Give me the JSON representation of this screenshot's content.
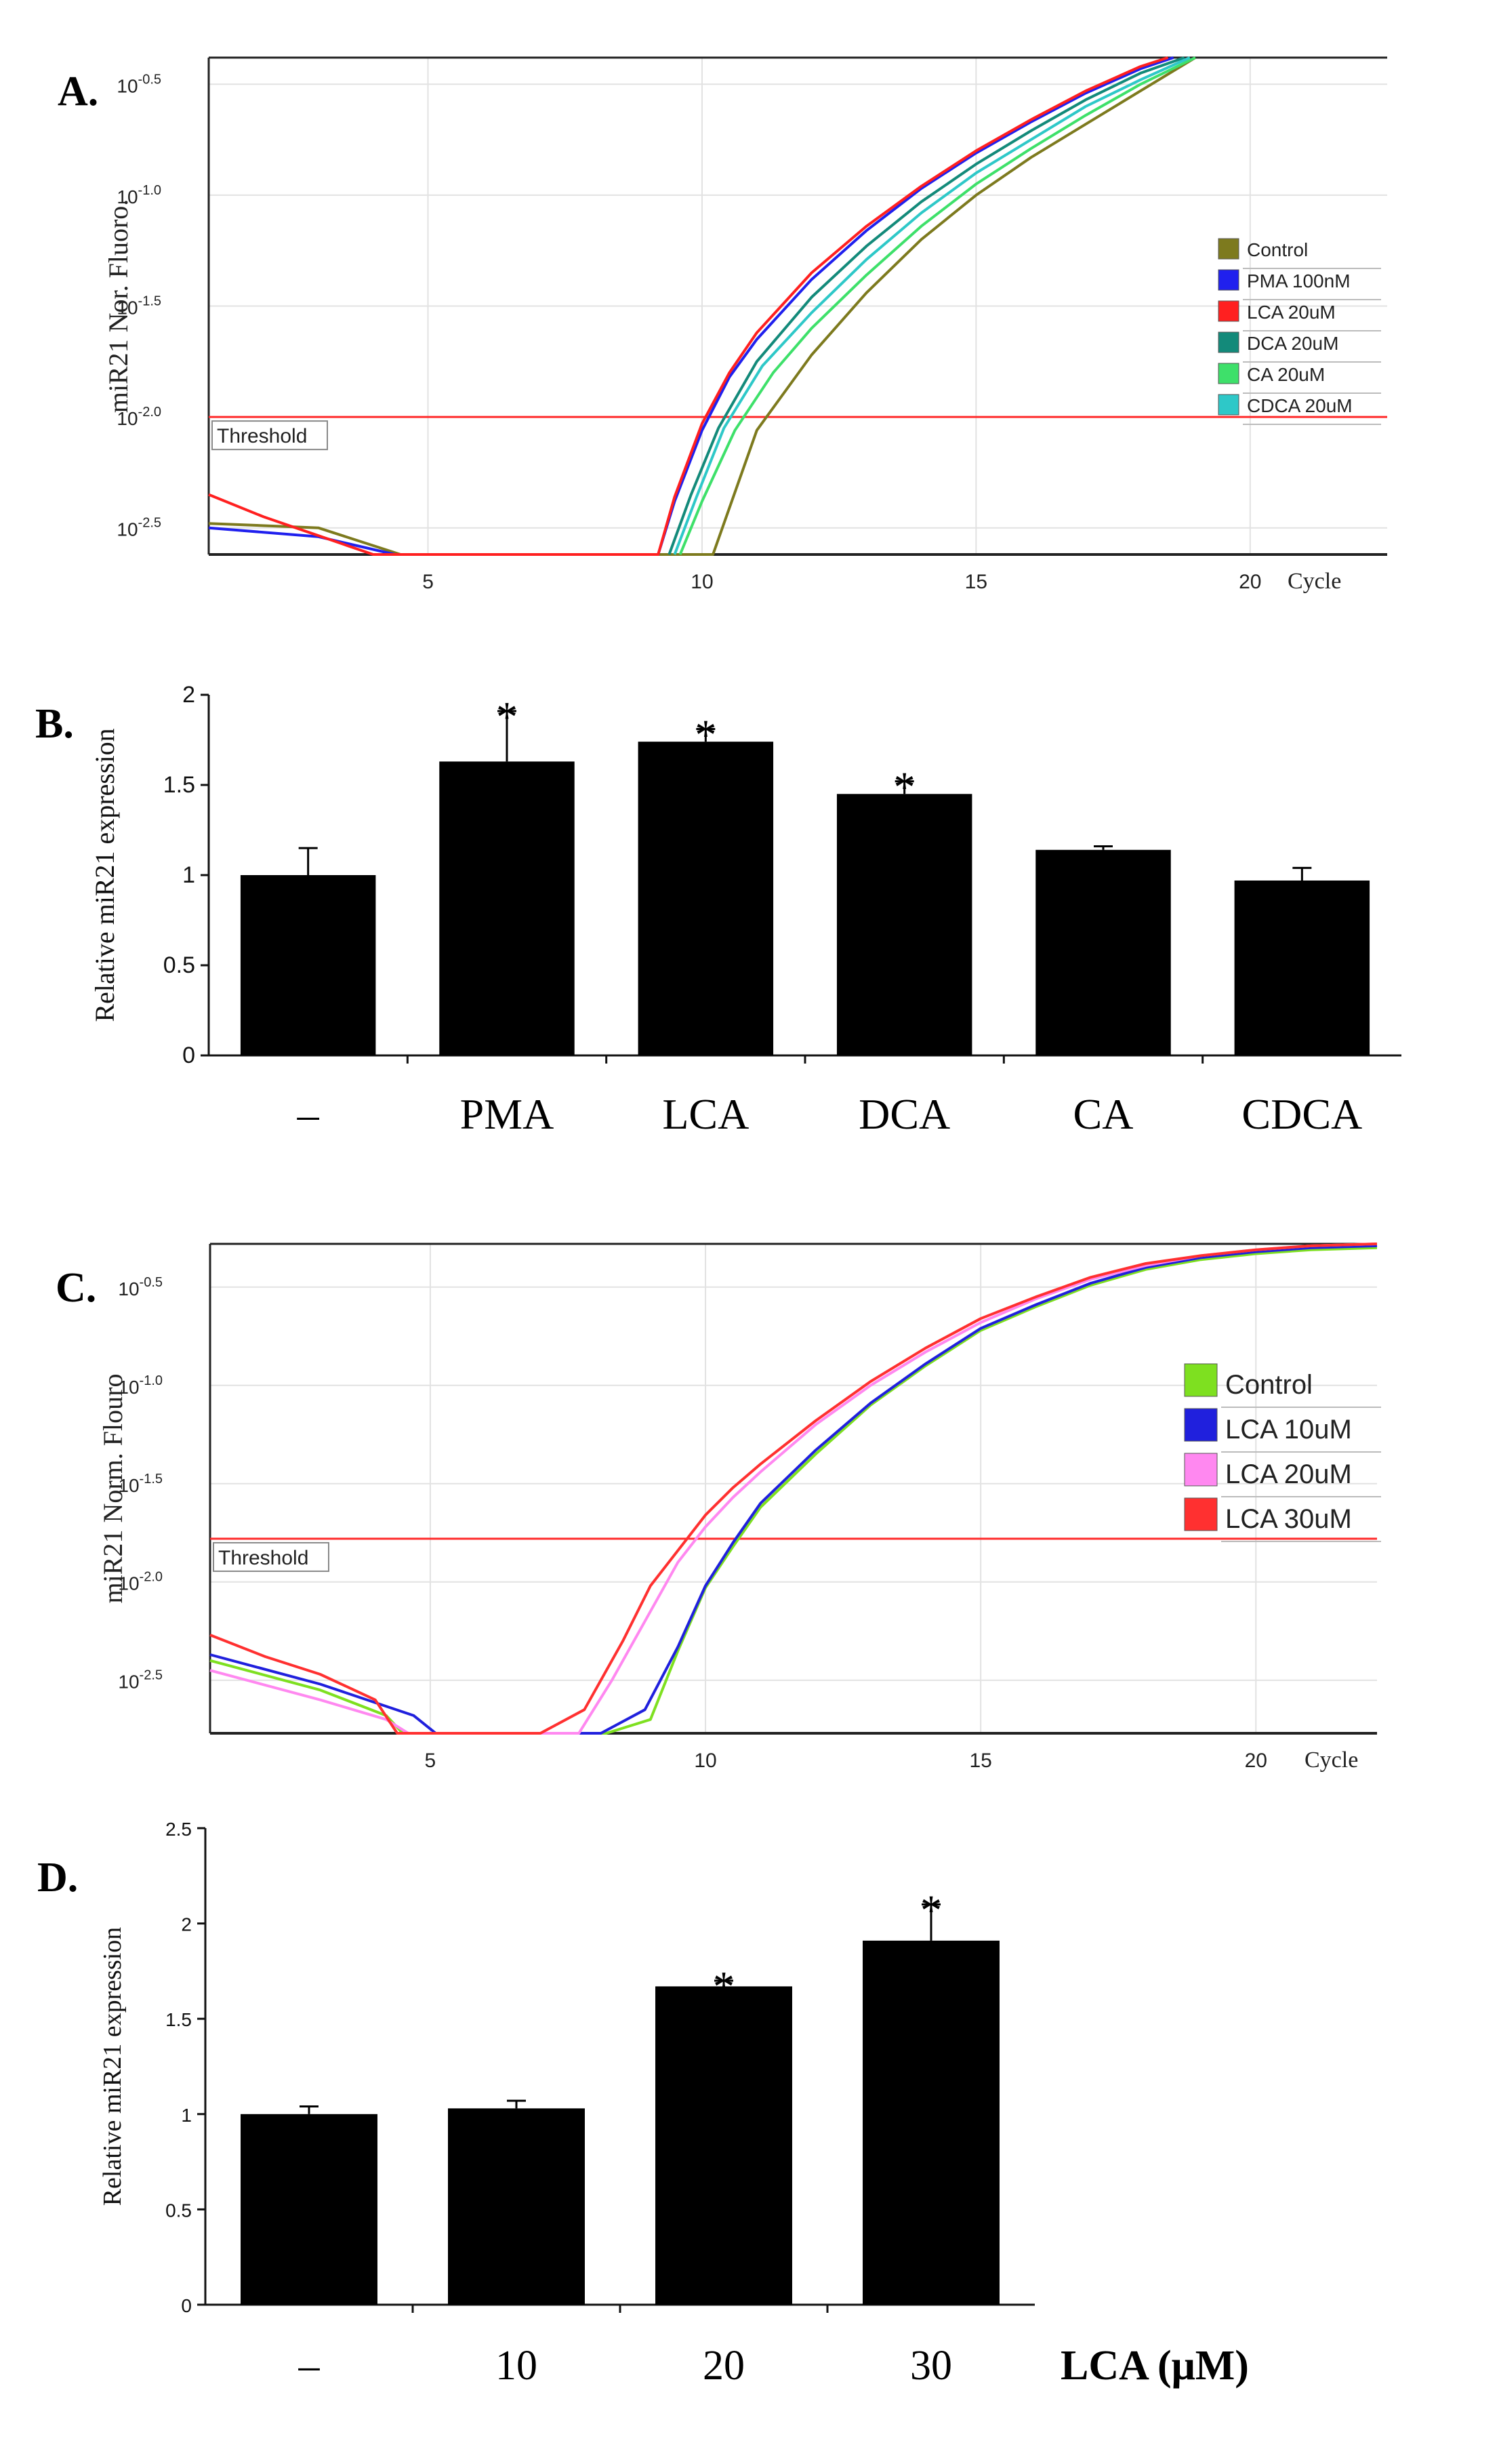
{
  "figure_labels": {
    "a": "A.",
    "b": "B.",
    "c": "C.",
    "d": "D."
  },
  "chart_data": [
    {
      "panel": "A",
      "type": "line",
      "ylabel": "miR21 Nor. Fluoro.",
      "xlabel": "Cycle",
      "y_scale": "log10",
      "ylim": [
        -2.62,
        -0.38
      ],
      "xlim": [
        1,
        22.5
      ],
      "x_ticks": [
        5,
        10,
        15,
        20
      ],
      "y_ticks": [
        {
          "value": -0.5,
          "base": "10",
          "exp": "-0.5"
        },
        {
          "value": -1.0,
          "base": "10",
          "exp": "-1.0"
        },
        {
          "value": -1.5,
          "base": "10",
          "exp": "-1.5"
        },
        {
          "value": -2.0,
          "base": "10",
          "exp": "-2.0"
        },
        {
          "value": -2.5,
          "base": "10",
          "exp": "-2.5"
        }
      ],
      "threshold": {
        "label": "Threshold",
        "value": -2.0
      },
      "legend": "right",
      "series": [
        {
          "name": "Control",
          "color": "#7d7a1e",
          "x": [
            1,
            3,
            4.5,
            10.2,
            11,
            12,
            13,
            14,
            15,
            16,
            17,
            18,
            19
          ],
          "y": [
            -2.48,
            -2.5,
            -2.62,
            -2.62,
            -2.06,
            -1.72,
            -1.44,
            -1.2,
            -1.0,
            -0.83,
            -0.68,
            -0.53,
            -0.38
          ]
        },
        {
          "name": "PMA 100nM",
          "color": "#2020ee",
          "x": [
            1,
            3,
            4.4,
            9.2,
            9.5,
            10,
            10.5,
            11,
            12,
            13,
            14,
            15,
            16,
            17,
            18,
            18.6
          ],
          "y": [
            -2.5,
            -2.54,
            -2.62,
            -2.62,
            -2.38,
            -2.06,
            -1.82,
            -1.65,
            -1.38,
            -1.16,
            -0.97,
            -0.81,
            -0.67,
            -0.54,
            -0.43,
            -0.38
          ]
        },
        {
          "name": "LCA 20uM",
          "color": "#ff2020",
          "x": [
            1,
            2,
            4,
            9.2,
            9.5,
            10,
            10.5,
            11,
            12,
            13,
            14,
            15,
            16,
            17,
            18,
            18.5
          ],
          "y": [
            -2.35,
            -2.45,
            -2.62,
            -2.62,
            -2.36,
            -2.03,
            -1.8,
            -1.62,
            -1.35,
            -1.14,
            -0.96,
            -0.8,
            -0.66,
            -0.53,
            -0.42,
            -0.38
          ]
        },
        {
          "name": "DCA 20uM",
          "color": "#138a7a",
          "x": [
            9.4,
            9.8,
            10.3,
            11,
            12,
            13,
            14,
            15,
            16,
            17,
            18,
            18.8
          ],
          "y": [
            -2.62,
            -2.35,
            -2.05,
            -1.75,
            -1.46,
            -1.23,
            -1.03,
            -0.86,
            -0.71,
            -0.57,
            -0.45,
            -0.38
          ]
        },
        {
          "name": "CA 20uM",
          "color": "#3ee06a",
          "x": [
            9.6,
            10,
            10.6,
            11.3,
            12,
            13,
            14,
            15,
            16,
            17,
            18,
            19
          ],
          "y": [
            -2.62,
            -2.38,
            -2.06,
            -1.8,
            -1.6,
            -1.36,
            -1.14,
            -0.95,
            -0.79,
            -0.64,
            -0.5,
            -0.38
          ]
        },
        {
          "name": "CDCA 20uM",
          "color": "#2ec8c8",
          "x": [
            9.5,
            9.9,
            10.4,
            11.1,
            12,
            13,
            14,
            15,
            16,
            17,
            18,
            18.9
          ],
          "y": [
            -2.62,
            -2.36,
            -2.05,
            -1.77,
            -1.53,
            -1.29,
            -1.08,
            -0.9,
            -0.75,
            -0.6,
            -0.48,
            -0.38
          ]
        }
      ]
    },
    {
      "panel": "B",
      "type": "bar",
      "ylabel": "Relative miR21 expression",
      "ylim": [
        0,
        2
      ],
      "y_ticks": [
        0,
        0.5,
        1,
        1.5,
        2
      ],
      "y_tick_labels": [
        "0",
        "0.5",
        "1",
        "1.5",
        "2"
      ],
      "categories": [
        "–",
        "PMA",
        "LCA",
        "DCA",
        "CA",
        "CDCA"
      ],
      "values": [
        1.0,
        1.63,
        1.74,
        1.45,
        1.14,
        0.97
      ],
      "errors": [
        0.15,
        0.28,
        0.07,
        0.07,
        0.02,
        0.07
      ],
      "significant": [
        false,
        true,
        true,
        true,
        false,
        false
      ],
      "significance_mark": "*"
    },
    {
      "panel": "C",
      "type": "line",
      "ylabel": "miR21 Norm. Flouro",
      "xlabel": "Cycle",
      "y_scale": "log10",
      "ylim": [
        -2.77,
        -0.28
      ],
      "xlim": [
        1,
        22.2
      ],
      "x_ticks": [
        5,
        10,
        15,
        20
      ],
      "y_ticks": [
        {
          "value": -0.5,
          "base": "10",
          "exp": "-0.5"
        },
        {
          "value": -1.0,
          "base": "10",
          "exp": "-1.0"
        },
        {
          "value": -1.5,
          "base": "10",
          "exp": "-1.5"
        },
        {
          "value": -2.0,
          "base": "10",
          "exp": "-2.0"
        },
        {
          "value": -2.5,
          "base": "10",
          "exp": "-2.5"
        }
      ],
      "threshold": {
        "label": "Threshold",
        "value": -1.78
      },
      "legend": "right",
      "series": [
        {
          "name": "Control",
          "color": "#7ee020",
          "x": [
            1,
            3,
            4.2,
            4.5,
            8.2,
            9,
            9.5,
            10,
            10.5,
            11,
            12,
            13,
            14,
            15,
            16,
            17,
            18,
            19,
            20,
            21,
            22.2
          ],
          "y": [
            -2.4,
            -2.55,
            -2.68,
            -2.77,
            -2.77,
            -2.7,
            -2.35,
            -2.03,
            -1.82,
            -1.62,
            -1.35,
            -1.1,
            -0.9,
            -0.72,
            -0.6,
            -0.49,
            -0.41,
            -0.36,
            -0.33,
            -0.31,
            -0.3
          ]
        },
        {
          "name": "LCA 10uM",
          "color": "#2020dd",
          "x": [
            1,
            3,
            4.7,
            5.1,
            8.1,
            8.9,
            9.5,
            10,
            10.5,
            11,
            12,
            13,
            14,
            15,
            16,
            17,
            18,
            19,
            20,
            21,
            22.2
          ],
          "y": [
            -2.37,
            -2.52,
            -2.68,
            -2.77,
            -2.77,
            -2.65,
            -2.33,
            -2.02,
            -1.8,
            -1.6,
            -1.33,
            -1.09,
            -0.89,
            -0.71,
            -0.59,
            -0.48,
            -0.4,
            -0.35,
            -0.32,
            -0.3,
            -0.29
          ]
        },
        {
          "name": "LCA 20uM",
          "color": "#ff88f0",
          "x": [
            1,
            3,
            4.2,
            4.6,
            7.7,
            8.3,
            9,
            9.5,
            10,
            10.5,
            11,
            12,
            13,
            14,
            15,
            16,
            17,
            18,
            19,
            20,
            21,
            22.2
          ],
          "y": [
            -2.45,
            -2.6,
            -2.7,
            -2.77,
            -2.77,
            -2.5,
            -2.15,
            -1.9,
            -1.72,
            -1.57,
            -1.44,
            -1.2,
            -1.0,
            -0.83,
            -0.68,
            -0.56,
            -0.46,
            -0.39,
            -0.34,
            -0.31,
            -0.29,
            -0.28
          ]
        },
        {
          "name": "LCA 30uM",
          "color": "#ff3030",
          "x": [
            1,
            2,
            3,
            4,
            4.4,
            7,
            7.8,
            8.5,
            9,
            9.5,
            10,
            10.5,
            11,
            12,
            13,
            14,
            15,
            16,
            17,
            18,
            19,
            20,
            21,
            22.2
          ],
          "y": [
            -2.27,
            -2.38,
            -2.47,
            -2.6,
            -2.77,
            -2.77,
            -2.65,
            -2.3,
            -2.02,
            -1.84,
            -1.66,
            -1.52,
            -1.4,
            -1.18,
            -0.98,
            -0.81,
            -0.66,
            -0.55,
            -0.45,
            -0.38,
            -0.34,
            -0.31,
            -0.29,
            -0.28
          ]
        }
      ]
    },
    {
      "panel": "D",
      "type": "bar",
      "ylabel": "Relative miR21 expression",
      "ylim": [
        0,
        2.5
      ],
      "y_ticks": [
        0,
        0.5,
        1,
        1.5,
        2,
        2.5
      ],
      "y_tick_labels": [
        "0",
        "0.5",
        "1",
        "1.5",
        "2",
        "2.5"
      ],
      "categories": [
        "–",
        "10",
        "20",
        "30"
      ],
      "xlabel": "LCA (μM)",
      "values": [
        1.0,
        1.03,
        1.67,
        1.91
      ],
      "errors": [
        0.04,
        0.04,
        0.03,
        0.19
      ],
      "significant": [
        false,
        false,
        true,
        true
      ],
      "significance_mark": "*"
    }
  ]
}
